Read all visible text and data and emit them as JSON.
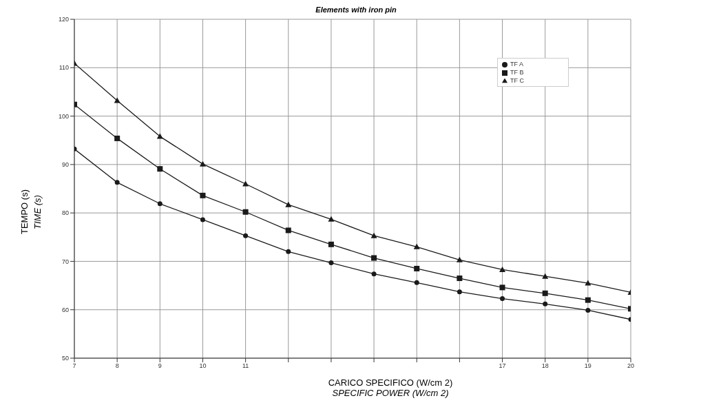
{
  "chart_data": {
    "type": "line",
    "title": "Elements with iron pin",
    "xlabel": "CARICO SPECIFICO (W/cm 2)\nSPECIFIC POWER (W/cm 2)",
    "ylabel": "TEMPO (s)\nTIME (s)",
    "x": [
      7,
      8,
      9,
      10,
      11,
      12,
      13,
      14,
      15,
      16,
      17,
      18,
      19,
      20
    ],
    "series": [
      {
        "name": "TF A",
        "color": "#1a1a1a",
        "marker": "circle",
        "values": [
          93.2,
          86.3,
          81.9,
          78.6,
          75.3,
          72,
          69.7,
          67.4,
          65.6,
          63.7,
          62.3,
          61.2,
          59.9,
          58
        ]
      },
      {
        "name": "TF B",
        "color": "#1a1a1a",
        "marker": "square",
        "values": [
          102.4,
          95.4,
          89.1,
          83.6,
          80.2,
          76.4,
          73.5,
          70.7,
          68.5,
          66.5,
          64.6,
          63.4,
          62,
          60.2
        ]
      },
      {
        "name": "TF C",
        "color": "#1a1a1a",
        "marker": "triangle",
        "values": [
          110.9,
          103.2,
          95.8,
          90.1,
          86,
          81.7,
          78.7,
          75.3,
          73,
          70.3,
          68.3,
          66.9,
          65.5,
          63.6
        ]
      }
    ],
    "xlim": [
      7,
      20
    ],
    "xticks": [
      7,
      8,
      9,
      10,
      11,
      {
        "value": 12,
        "label": null
      },
      {
        "value": 13,
        "label": null
      },
      {
        "value": 14,
        "label": null
      },
      {
        "value": 15,
        "label": null
      },
      {
        "value": 16,
        "label": null
      },
      17,
      18,
      19,
      20
    ],
    "ylim": [
      50,
      120
    ],
    "yticks": [
      50,
      60,
      70,
      80,
      90,
      100,
      110,
      120
    ],
    "grid": true,
    "legend": "top right",
    "line_style": "solid"
  }
}
